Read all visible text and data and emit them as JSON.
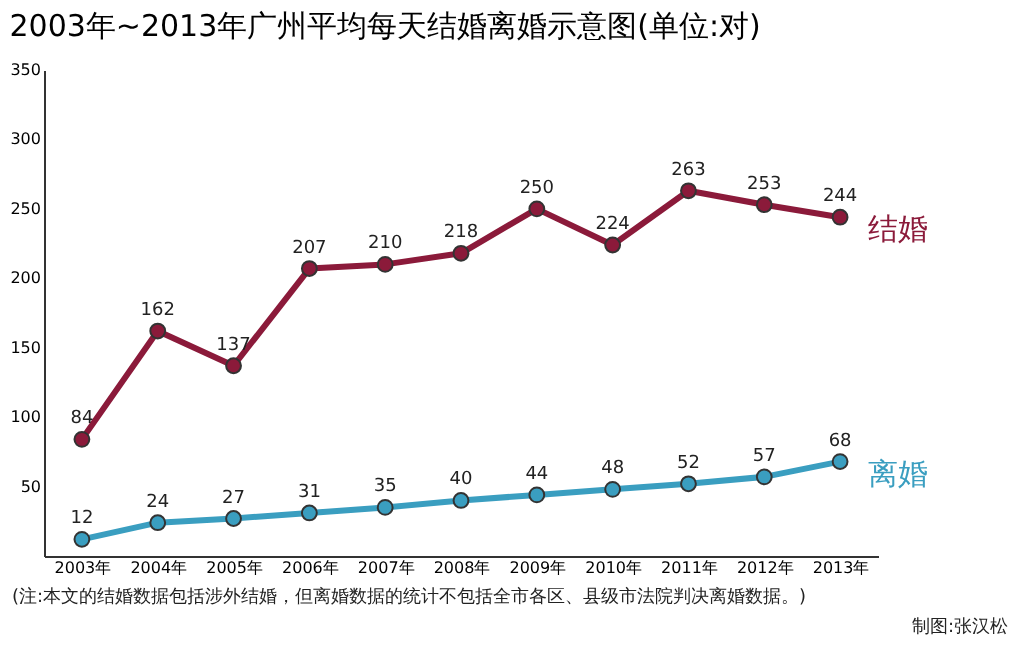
{
  "chart_data": {
    "type": "line",
    "title": "2003年~2013年广州平均每天结婚离婚示意图(单位:对)",
    "categories": [
      "2003年",
      "2004年",
      "2005年",
      "2006年",
      "2007年",
      "2008年",
      "2009年",
      "2010年",
      "2011年",
      "2012年",
      "2013年"
    ],
    "series": [
      {
        "name": "结婚",
        "color": "#8b1a3a",
        "values": [
          84,
          162,
          137,
          207,
          210,
          218,
          250,
          224,
          263,
          253,
          244
        ]
      },
      {
        "name": "离婚",
        "color": "#3a9ec0",
        "values": [
          12,
          24,
          27,
          31,
          35,
          40,
          44,
          48,
          52,
          57,
          68
        ]
      }
    ],
    "ylim": [
      0,
      350
    ],
    "yticks": [
      50,
      100,
      150,
      200,
      250,
      300,
      350
    ],
    "data_labels": true,
    "grid": false,
    "legend": false,
    "marker": "circle",
    "line_style": "solid",
    "annotations": [
      "(注:本文的结婚数据包括涉外结婚，但离婚数据的统计不包括全市各区、县级市法院判决离婚数据。)",
      "制图:张汉松"
    ]
  }
}
